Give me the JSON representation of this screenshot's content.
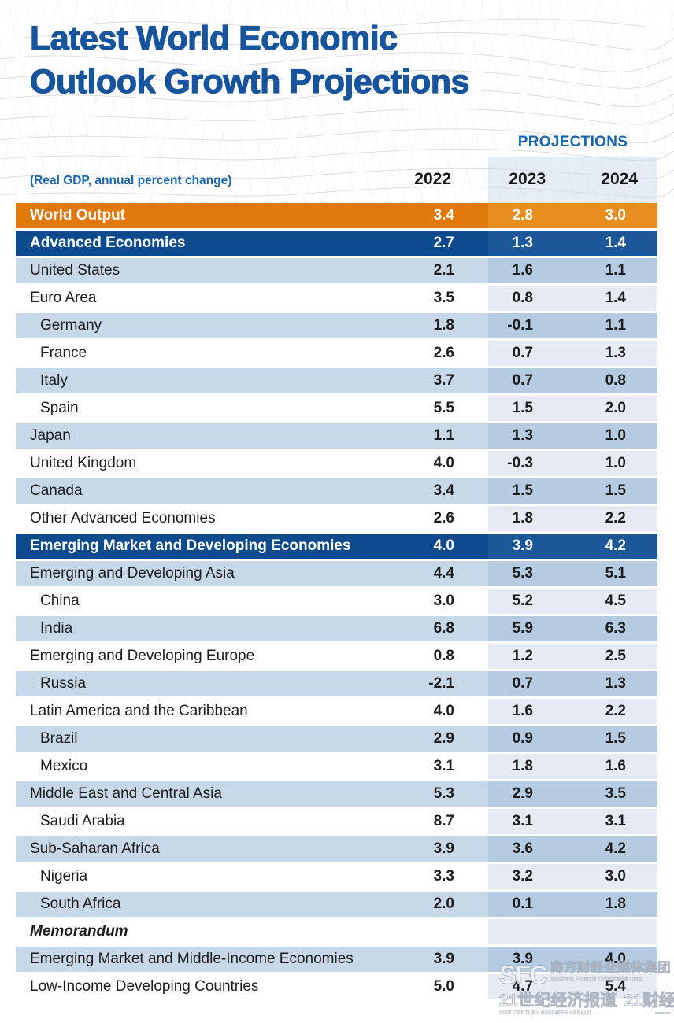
{
  "title": {
    "line1": "Latest World Economic",
    "line2": "Outlook Growth Projections"
  },
  "header": {
    "projections_label": "PROJECTIONS",
    "subtitle": "(Real GDP, annual percent change)",
    "years": {
      "y2022": "2022",
      "y2023": "2023",
      "y2024": "2024"
    }
  },
  "colors": {
    "title_blue": "#17549E",
    "label_blue": "#1565B0",
    "row_orange": "#E1790A",
    "row_orange_band": "#E88E1E",
    "row_darkblue": "#0E4B8E",
    "row_darkblue_band": "#1C5899",
    "row_lightblue": "#C7D8E9",
    "row_lightblue_band": "#B5CBE1",
    "row_white_band": "#E5EAF3",
    "text_dark": "#1d1d1d"
  },
  "chart_data": {
    "type": "table",
    "title": "Latest World Economic Outlook Growth Projections",
    "subtitle": "(Real GDP, annual percent change)",
    "columns": [
      "2022",
      "2023",
      "2024"
    ],
    "projection_columns": [
      "2023",
      "2024"
    ],
    "rows": [
      {
        "label": "World Output",
        "style": "orange",
        "indent": false,
        "memo": false,
        "values": [
          "3.4",
          "2.8",
          "3.0"
        ]
      },
      {
        "label": "Advanced Economies",
        "style": "darkblue",
        "indent": false,
        "memo": false,
        "values": [
          "2.7",
          "1.3",
          "1.4"
        ]
      },
      {
        "label": "United States",
        "style": "light",
        "indent": false,
        "memo": false,
        "values": [
          "2.1",
          "1.6",
          "1.1"
        ]
      },
      {
        "label": "Euro Area",
        "style": "white",
        "indent": false,
        "memo": false,
        "values": [
          "3.5",
          "0.8",
          "1.4"
        ]
      },
      {
        "label": "Germany",
        "style": "light",
        "indent": true,
        "memo": false,
        "values": [
          "1.8",
          "-0.1",
          "1.1"
        ]
      },
      {
        "label": "France",
        "style": "white",
        "indent": true,
        "memo": false,
        "values": [
          "2.6",
          "0.7",
          "1.3"
        ]
      },
      {
        "label": "Italy",
        "style": "light",
        "indent": true,
        "memo": false,
        "values": [
          "3.7",
          "0.7",
          "0.8"
        ]
      },
      {
        "label": "Spain",
        "style": "white",
        "indent": true,
        "memo": false,
        "values": [
          "5.5",
          "1.5",
          "2.0"
        ]
      },
      {
        "label": "Japan",
        "style": "light",
        "indent": false,
        "memo": false,
        "values": [
          "1.1",
          "1.3",
          "1.0"
        ]
      },
      {
        "label": "United Kingdom",
        "style": "white",
        "indent": false,
        "memo": false,
        "values": [
          "4.0",
          "-0.3",
          "1.0"
        ]
      },
      {
        "label": "Canada",
        "style": "light",
        "indent": false,
        "memo": false,
        "values": [
          "3.4",
          "1.5",
          "1.5"
        ]
      },
      {
        "label": "Other Advanced Economies",
        "style": "white",
        "indent": false,
        "memo": false,
        "values": [
          "2.6",
          "1.8",
          "2.2"
        ]
      },
      {
        "label": "Emerging Market and Developing Economies",
        "style": "darkblue",
        "indent": false,
        "memo": false,
        "values": [
          "4.0",
          "3.9",
          "4.2"
        ]
      },
      {
        "label": "Emerging and Developing Asia",
        "style": "light",
        "indent": false,
        "memo": false,
        "values": [
          "4.4",
          "5.3",
          "5.1"
        ]
      },
      {
        "label": "China",
        "style": "white",
        "indent": true,
        "memo": false,
        "values": [
          "3.0",
          "5.2",
          "4.5"
        ]
      },
      {
        "label": "India",
        "style": "light",
        "indent": true,
        "memo": false,
        "values": [
          "6.8",
          "5.9",
          "6.3"
        ]
      },
      {
        "label": "Emerging and Developing Europe",
        "style": "white",
        "indent": false,
        "memo": false,
        "values": [
          "0.8",
          "1.2",
          "2.5"
        ]
      },
      {
        "label": "Russia",
        "style": "light",
        "indent": true,
        "memo": false,
        "values": [
          "-2.1",
          "0.7",
          "1.3"
        ]
      },
      {
        "label": "Latin America and the Caribbean",
        "style": "white",
        "indent": false,
        "memo": false,
        "values": [
          "4.0",
          "1.6",
          "2.2"
        ]
      },
      {
        "label": "Brazil",
        "style": "light",
        "indent": true,
        "memo": false,
        "values": [
          "2.9",
          "0.9",
          "1.5"
        ]
      },
      {
        "label": "Mexico",
        "style": "white",
        "indent": true,
        "memo": false,
        "values": [
          "3.1",
          "1.8",
          "1.6"
        ]
      },
      {
        "label": "Middle East and Central Asia",
        "style": "light",
        "indent": false,
        "memo": false,
        "values": [
          "5.3",
          "2.9",
          "3.5"
        ]
      },
      {
        "label": "Saudi Arabia",
        "style": "white",
        "indent": true,
        "memo": false,
        "values": [
          "8.7",
          "3.1",
          "3.1"
        ]
      },
      {
        "label": "Sub-Saharan Africa",
        "style": "light",
        "indent": false,
        "memo": false,
        "values": [
          "3.9",
          "3.6",
          "4.2"
        ]
      },
      {
        "label": "Nigeria",
        "style": "white",
        "indent": true,
        "memo": false,
        "values": [
          "3.3",
          "3.2",
          "3.0"
        ]
      },
      {
        "label": "South Africa",
        "style": "light",
        "indent": true,
        "memo": false,
        "values": [
          "2.0",
          "0.1",
          "1.8"
        ]
      },
      {
        "label": "Memorandum",
        "style": "white",
        "indent": false,
        "memo": true,
        "values": [
          "",
          "",
          ""
        ]
      },
      {
        "label": "Emerging Market and Middle-Income Economies",
        "style": "light",
        "indent": false,
        "memo": false,
        "values": [
          "3.9",
          "3.9",
          "4.0"
        ]
      },
      {
        "label": "Low-Income Developing Countries",
        "style": "white",
        "indent": false,
        "memo": false,
        "values": [
          "5.0",
          "4.7",
          "5.4"
        ]
      }
    ]
  },
  "watermark": {
    "sfc": "SFC",
    "group_cn": "南方财经全媒体集团",
    "group_en": "Southern Finance Omnimedia Corp.",
    "herald_cn": "21世纪经济报道",
    "finance_cn": "21财经",
    "herald_en": "21ST CENTURY BUSINESS HERALD",
    "finance_seal": "▫▫▫▫▫▫▫▫"
  }
}
